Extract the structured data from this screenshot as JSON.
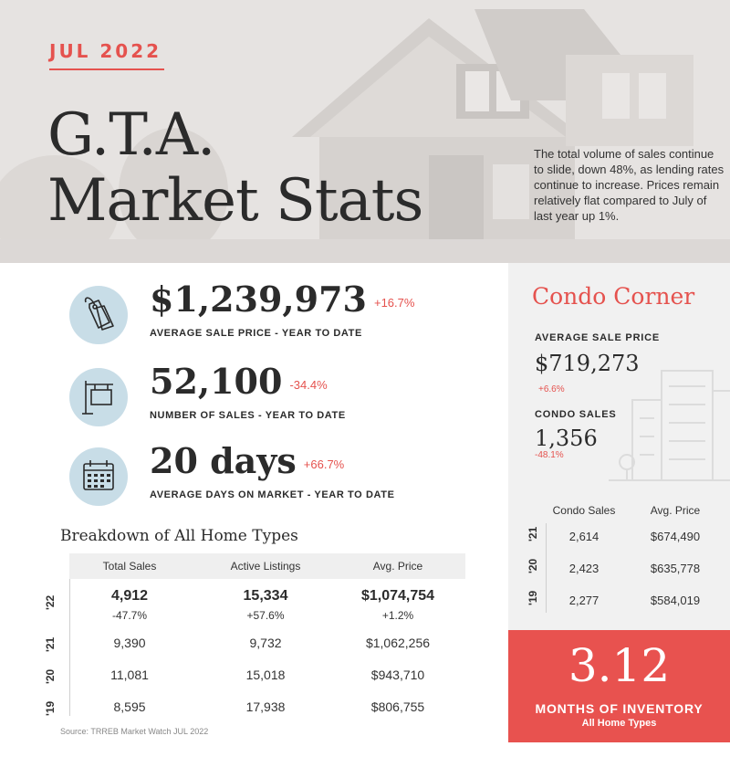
{
  "header": {
    "date": "JUL 2022",
    "title_line1": "G.T.A.",
    "title_line2": "Market Stats",
    "intro": "The total volume of sales continue to slide, down 48%, as lending rates continue to increase.  Prices remain relatively flat compared to July of last year up 1%."
  },
  "stats": [
    {
      "value": "$1,239,973",
      "change": "+16.7%",
      "label": "AVERAGE SALE PRICE - YEAR TO DATE",
      "icon": "price-tag-icon"
    },
    {
      "value": "52,100",
      "change": "-34.4%",
      "label": "NUMBER OF SALES - YEAR TO DATE",
      "icon": "for-sale-sign-icon"
    },
    {
      "value": "20 days",
      "change": "+66.7%",
      "label": "AVERAGE DAYS ON MARKET - YEAR TO DATE",
      "icon": "calendar-icon"
    }
  ],
  "breakdown": {
    "title": "Breakdown of All Home Types",
    "columns": [
      "Total Sales",
      "Active Listings",
      "Avg. Price"
    ],
    "rows": [
      {
        "year": "'22",
        "values": [
          "4,912",
          "15,334",
          "$1,074,754"
        ],
        "changes": [
          "-47.7%",
          "+57.6%",
          "+1.2%"
        ]
      },
      {
        "year": "'21",
        "values": [
          "9,390",
          "9,732",
          "$1,062,256"
        ]
      },
      {
        "year": "'20",
        "values": [
          "11,081",
          "15,018",
          "$943,710"
        ]
      },
      {
        "year": "'19",
        "values": [
          "8,595",
          "17,938",
          "$806,755"
        ]
      }
    ],
    "source": "Source: TRREB Market Watch JUL 2022"
  },
  "condo": {
    "title": "Condo Corner",
    "avg_price_label": "AVERAGE SALE PRICE",
    "avg_price_value": "$719,273",
    "avg_price_change": "+6.6%",
    "sales_label": "CONDO SALES",
    "sales_value": "1,356",
    "sales_change": "-48.1%",
    "columns": [
      "Condo Sales",
      "Avg. Price"
    ],
    "rows": [
      {
        "year": "'21",
        "values": [
          "2,614",
          "$674,490"
        ]
      },
      {
        "year": "'20",
        "values": [
          "2,423",
          "$635,778"
        ]
      },
      {
        "year": "'19",
        "values": [
          "2,277",
          "$584,019"
        ]
      }
    ]
  },
  "inventory": {
    "value": "3.12",
    "label": "MONTHS OF INVENTORY",
    "sublabel": "All Home Types"
  },
  "colors": {
    "accent": "#e5524e",
    "icon_circle": "#c8dde7",
    "panel": "#f1f1f1"
  }
}
